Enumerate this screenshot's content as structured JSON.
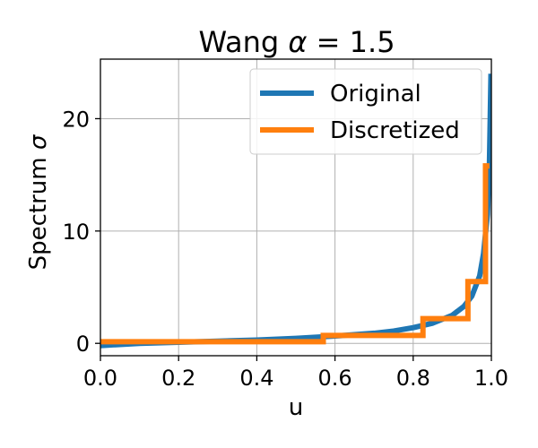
{
  "chart_data": {
    "type": "line",
    "title_prefix": "Wang ",
    "title_symbol": "α",
    "title_suffix": " = 1.5",
    "xlabel": "u",
    "ylabel_prefix": "Spectrum ",
    "ylabel_symbol": "σ",
    "xlim": [
      0.0,
      1.0
    ],
    "ylim": [
      -1.1,
      25.3
    ],
    "xticks": [
      0.0,
      0.2,
      0.4,
      0.6,
      0.8,
      1.0
    ],
    "xtick_labels": [
      "0.0",
      "0.2",
      "0.4",
      "0.6",
      "0.8",
      "1.0"
    ],
    "yticks": [
      0,
      10,
      20
    ],
    "ytick_labels": [
      "0",
      "10",
      "20"
    ],
    "grid": true,
    "legend_position": "top-right",
    "series": [
      {
        "name": "Original",
        "color": "#1f77b4",
        "style": "smooth",
        "x": [
          0.0,
          0.05,
          0.1,
          0.2,
          0.3,
          0.4,
          0.5,
          0.6,
          0.7,
          0.75,
          0.8,
          0.85,
          0.9,
          0.93,
          0.95,
          0.97,
          0.98,
          0.99,
          0.995,
          0.999
        ],
        "y": [
          -0.2,
          -0.1,
          0.0,
          0.1,
          0.2,
          0.3,
          0.45,
          0.65,
          0.9,
          1.1,
          1.4,
          1.8,
          2.5,
          3.3,
          4.2,
          6.0,
          8.0,
          11.5,
          16.0,
          24.0
        ]
      },
      {
        "name": "Discretized",
        "color": "#ff7f0e",
        "style": "step",
        "x": [
          0.0,
          0.57,
          0.57,
          0.825,
          0.825,
          0.94,
          0.94,
          0.985,
          0.985,
          0.995
        ],
        "y": [
          0.15,
          0.15,
          0.7,
          0.7,
          2.2,
          2.2,
          5.5,
          5.5,
          15.8,
          15.8
        ]
      }
    ]
  }
}
